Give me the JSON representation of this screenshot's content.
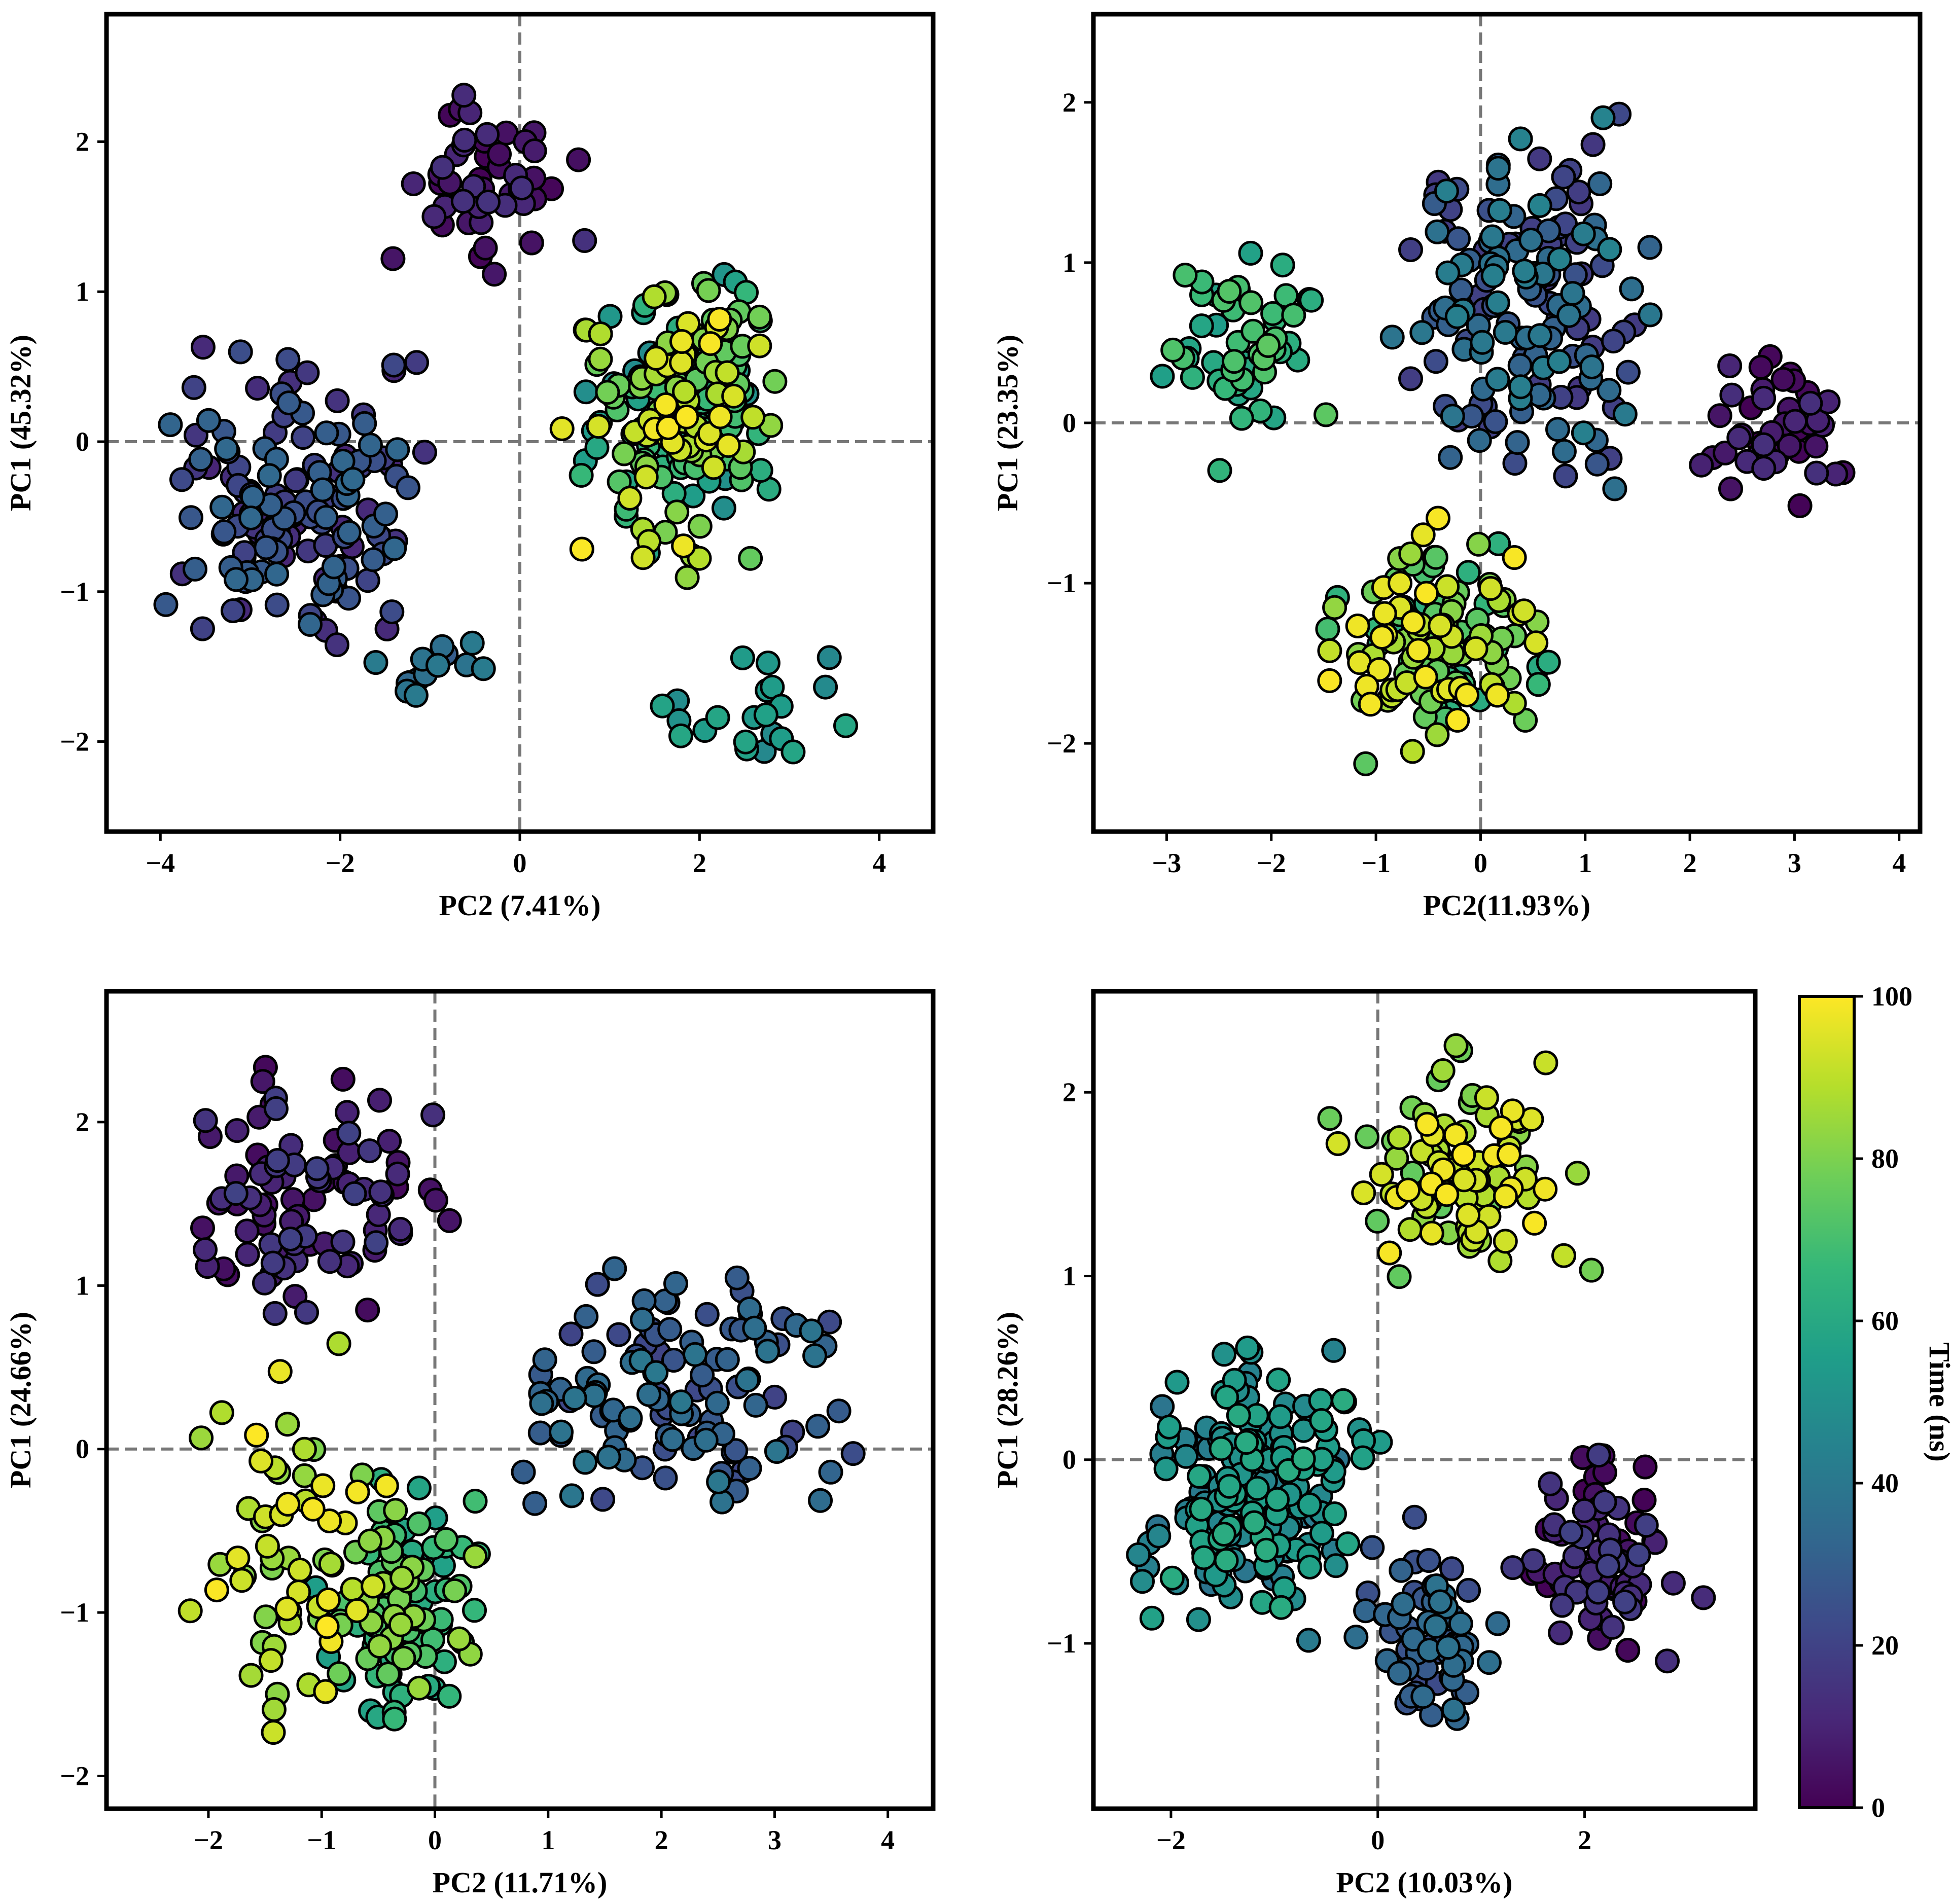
{
  "chart_data": [
    {
      "type": "scatter",
      "xlabel": "PC2 (7.41%)",
      "ylabel": "PC1 (45.32%)",
      "xlim": [
        -4.6,
        4.6
      ],
      "ylim": [
        -2.6,
        2.85
      ],
      "xticks": [
        -4,
        -2,
        0,
        2,
        4
      ],
      "yticks": [
        -2,
        -1,
        0,
        1,
        2
      ],
      "reference_lines": {
        "x": 0,
        "y": 0,
        "style": "dashed"
      },
      "color_by": "time_ns",
      "clusters": [
        {
          "time_range": [
            0,
            15
          ],
          "n": 50,
          "x_range": [
            -1.6,
            0.95
          ],
          "y_range": [
            0.85,
            2.6
          ],
          "seed": 101
        },
        {
          "time_range": [
            10,
            34
          ],
          "n": 150,
          "x_range": [
            -4.3,
            -0.6
          ],
          "y_range": [
            -1.7,
            0.85
          ],
          "seed": 102
        },
        {
          "time_range": [
            28,
            42
          ],
          "n": 14,
          "x_range": [
            -2.0,
            -0.2
          ],
          "y_range": [
            -1.95,
            -1.2
          ],
          "seed": 103
        },
        {
          "time_range": [
            48,
            100
          ],
          "n": 200,
          "x_range": [
            0.3,
            3.3
          ],
          "y_range": [
            -1.1,
            1.5
          ],
          "seed": 104
        },
        {
          "time_range": [
            45,
            62
          ],
          "n": 22,
          "x_range": [
            0.7,
            4.4
          ],
          "y_range": [
            -2.4,
            -1.2
          ],
          "seed": 105
        }
      ]
    },
    {
      "type": "scatter",
      "xlabel": "PC2(11.93%)",
      "ylabel": "PC1 (23.35%)",
      "xlim": [
        -3.7,
        4.2
      ],
      "ylim": [
        -2.55,
        2.55
      ],
      "xticks": [
        -3,
        -2,
        -1,
        0,
        1,
        2,
        3,
        4
      ],
      "yticks": [
        -2,
        -1,
        0,
        1,
        2
      ],
      "reference_lines": {
        "x": 0,
        "y": 0,
        "style": "dashed"
      },
      "color_by": "time_ns",
      "clusters": [
        {
          "time_range": [
            0,
            14
          ],
          "n": 45,
          "x_range": [
            1.9,
            3.8
          ],
          "y_range": [
            -0.75,
            0.6
          ],
          "seed": 201
        },
        {
          "time_range": [
            15,
            45
          ],
          "n": 160,
          "x_range": [
            -1.2,
            2.0
          ],
          "y_range": [
            -0.8,
            2.3
          ],
          "seed": 202
        },
        {
          "time_range": [
            55,
            75
          ],
          "n": 55,
          "x_range": [
            -3.4,
            -1.2
          ],
          "y_range": [
            -0.4,
            1.3
          ],
          "seed": 203
        },
        {
          "time_range": [
            60,
            100
          ],
          "n": 130,
          "x_range": [
            -1.8,
            0.95
          ],
          "y_range": [
            -2.3,
            -0.4
          ],
          "seed": 204
        }
      ]
    },
    {
      "type": "scatter",
      "xlabel": "PC2 (11.71%)",
      "ylabel": "PC1 (24.66%)",
      "xlim": [
        -2.9,
        4.4
      ],
      "ylim": [
        -2.2,
        2.8
      ],
      "xticks": [
        -2,
        -1,
        0,
        1,
        2,
        3,
        4
      ],
      "yticks": [
        -2,
        -1,
        0,
        1,
        2
      ],
      "reference_lines": {
        "x": 0,
        "y": 0,
        "style": "dashed"
      },
      "color_by": "time_ns",
      "clusters": [
        {
          "time_range": [
            2,
            20
          ],
          "n": 95,
          "x_range": [
            -2.6,
            0.3
          ],
          "y_range": [
            0.4,
            2.65
          ],
          "seed": 301
        },
        {
          "time_range": [
            20,
            40
          ],
          "n": 120,
          "x_range": [
            0.1,
            4.1
          ],
          "y_range": [
            -0.7,
            1.4
          ],
          "seed": 302
        },
        {
          "time_range": [
            55,
            85
          ],
          "n": 120,
          "x_range": [
            -1.2,
            0.6
          ],
          "y_range": [
            -1.9,
            0.0
          ],
          "seed": 303
        },
        {
          "time_range": [
            80,
            100
          ],
          "n": 60,
          "x_range": [
            -2.3,
            -0.3
          ],
          "y_range": [
            -2.05,
            0.8
          ],
          "seed": 304
        }
      ]
    },
    {
      "type": "scatter",
      "xlabel": "PC2 (10.03%)",
      "ylabel": "PC1 (28.26%)",
      "xlim": [
        -2.75,
        3.65
      ],
      "ylim": [
        -1.9,
        2.55
      ],
      "xticks": [
        -2,
        0,
        2
      ],
      "yticks": [
        -1,
        0,
        1,
        2
      ],
      "reference_lines": {
        "x": 0,
        "y": 0,
        "style": "dashed"
      },
      "color_by": "time_ns",
      "clusters": [
        {
          "time_range": [
            38,
            62
          ],
          "n": 200,
          "x_range": [
            -2.6,
            0.2
          ],
          "y_range": [
            -1.1,
            0.75
          ],
          "seed": 401
        },
        {
          "time_range": [
            22,
            38
          ],
          "n": 70,
          "x_range": [
            -0.4,
            1.3
          ],
          "y_range": [
            -1.65,
            -0.2
          ],
          "seed": 402
        },
        {
          "time_range": [
            0,
            20
          ],
          "n": 80,
          "x_range": [
            1.0,
            3.4
          ],
          "y_range": [
            -1.25,
            0.2
          ],
          "seed": 403
        },
        {
          "time_range": [
            75,
            100
          ],
          "n": 95,
          "x_range": [
            -0.7,
            2.3
          ],
          "y_range": [
            0.7,
            2.5
          ],
          "seed": 404
        }
      ]
    }
  ],
  "colorbar": {
    "label": "Time (ns)",
    "min": 0,
    "max": 100,
    "ticks": [
      "0",
      "20",
      "40",
      "60",
      "80",
      "100"
    ],
    "colormap": "viridis",
    "stops": [
      "#440154",
      "#482878",
      "#3e4989",
      "#31688e",
      "#26828e",
      "#1f9e89",
      "#35b779",
      "#6ece58",
      "#b5de2b",
      "#fde725"
    ]
  }
}
